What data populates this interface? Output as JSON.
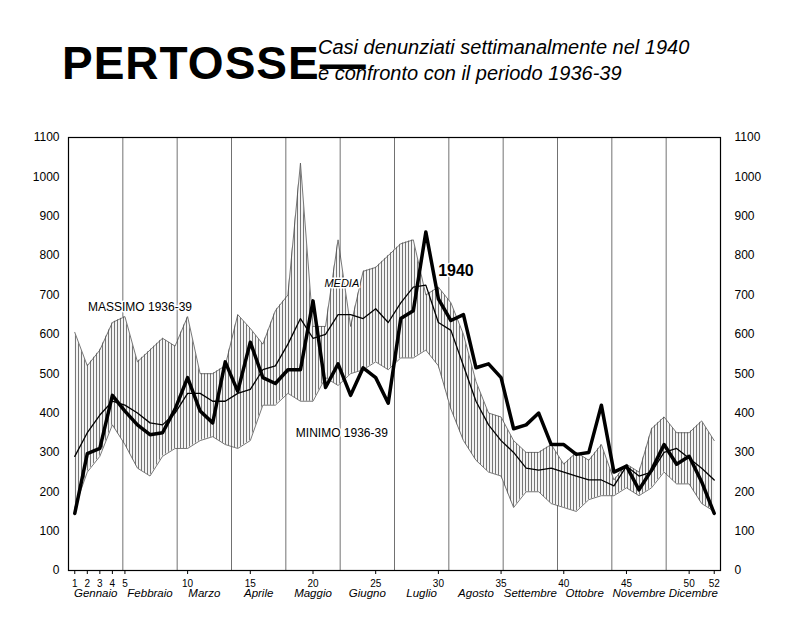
{
  "chart_data": {
    "type": "line",
    "title": "PERTOSSE—",
    "subtitle": [
      "Casi denunziati settimanalmente nel 1940",
      "e confronto con il periodo 1936-39"
    ],
    "x": [
      1,
      2,
      3,
      4,
      5,
      6,
      7,
      8,
      9,
      10,
      11,
      12,
      13,
      14,
      15,
      16,
      17,
      18,
      19,
      20,
      21,
      22,
      23,
      24,
      25,
      26,
      27,
      28,
      29,
      30,
      31,
      32,
      33,
      34,
      35,
      36,
      37,
      38,
      39,
      40,
      41,
      42,
      43,
      44,
      45,
      46,
      47,
      48,
      49,
      50,
      51,
      52
    ],
    "xlim": [
      0.5,
      52.5
    ],
    "xticks": [
      1,
      2,
      3,
      4,
      5,
      10,
      15,
      20,
      25,
      30,
      35,
      40,
      45,
      50,
      52
    ],
    "months": [
      "Gennaio",
      "Febbraio",
      "Marzo",
      "Aprile",
      "Maggio",
      "Giugno",
      "Luglio",
      "Agosto",
      "Settembre",
      "Ottobre",
      "Novembre",
      "Dicembre"
    ],
    "ylim": [
      0,
      1100
    ],
    "yticks": [
      0,
      100,
      200,
      300,
      400,
      500,
      600,
      700,
      800,
      900,
      1000,
      1100
    ],
    "grid": "x",
    "series": [
      {
        "name": "1940",
        "type": "line",
        "color": "#000000",
        "line_style": "bold",
        "values": [
          145,
          297,
          310,
          445,
          405,
          370,
          345,
          350,
          410,
          490,
          405,
          375,
          530,
          455,
          580,
          490,
          475,
          510,
          510,
          685,
          465,
          525,
          445,
          515,
          490,
          425,
          640,
          660,
          860,
          690,
          635,
          650,
          515,
          525,
          490,
          360,
          370,
          400,
          320,
          320,
          295,
          300,
          420,
          250,
          265,
          205,
          255,
          320,
          270,
          290,
          225,
          145
        ]
      },
      {
        "name": "MEDIA",
        "type": "line",
        "color": "#000000",
        "line_style": "solid",
        "values": [
          290,
          350,
          395,
          430,
          420,
          400,
          375,
          370,
          400,
          450,
          450,
          430,
          430,
          450,
          460,
          510,
          520,
          575,
          640,
          590,
          600,
          650,
          650,
          640,
          665,
          630,
          680,
          720,
          725,
          630,
          610,
          520,
          430,
          370,
          330,
          300,
          260,
          255,
          260,
          250,
          240,
          230,
          230,
          215,
          265,
          240,
          250,
          300,
          310,
          285,
          260,
          230
        ]
      },
      {
        "name": "MASSIMO 1936-39",
        "type": "area",
        "color": "#555555",
        "values": [
          605,
          520,
          560,
          630,
          645,
          530,
          560,
          590,
          570,
          645,
          500,
          500,
          520,
          650,
          615,
          575,
          660,
          700,
          1035,
          620,
          620,
          840,
          620,
          760,
          770,
          800,
          830,
          840,
          700,
          720,
          680,
          600,
          480,
          400,
          390,
          330,
          300,
          300,
          320,
          270,
          300,
          280,
          320,
          230,
          270,
          250,
          360,
          390,
          350,
          350,
          380,
          330
        ]
      },
      {
        "name": "MINIMO 1936-39",
        "type": "area",
        "color": "#555555",
        "values": [
          160,
          250,
          290,
          370,
          320,
          260,
          240,
          290,
          310,
          310,
          330,
          340,
          320,
          310,
          330,
          420,
          420,
          450,
          430,
          430,
          490,
          470,
          500,
          510,
          530,
          510,
          540,
          540,
          560,
          520,
          410,
          330,
          280,
          250,
          240,
          160,
          200,
          200,
          170,
          160,
          150,
          180,
          190,
          190,
          210,
          190,
          210,
          250,
          220,
          220,
          170,
          150
        ]
      }
    ],
    "annotations": [
      {
        "text": "MASSIMO 1936-39",
        "x": 6.2,
        "y": 670
      },
      {
        "text": "MEDIA",
        "x": 22.3,
        "y": 730
      },
      {
        "text": "MINIMO 1936-39",
        "x": 22.3,
        "y": 350
      },
      {
        "text": "1940",
        "x": 31.4,
        "y": 760
      }
    ]
  }
}
